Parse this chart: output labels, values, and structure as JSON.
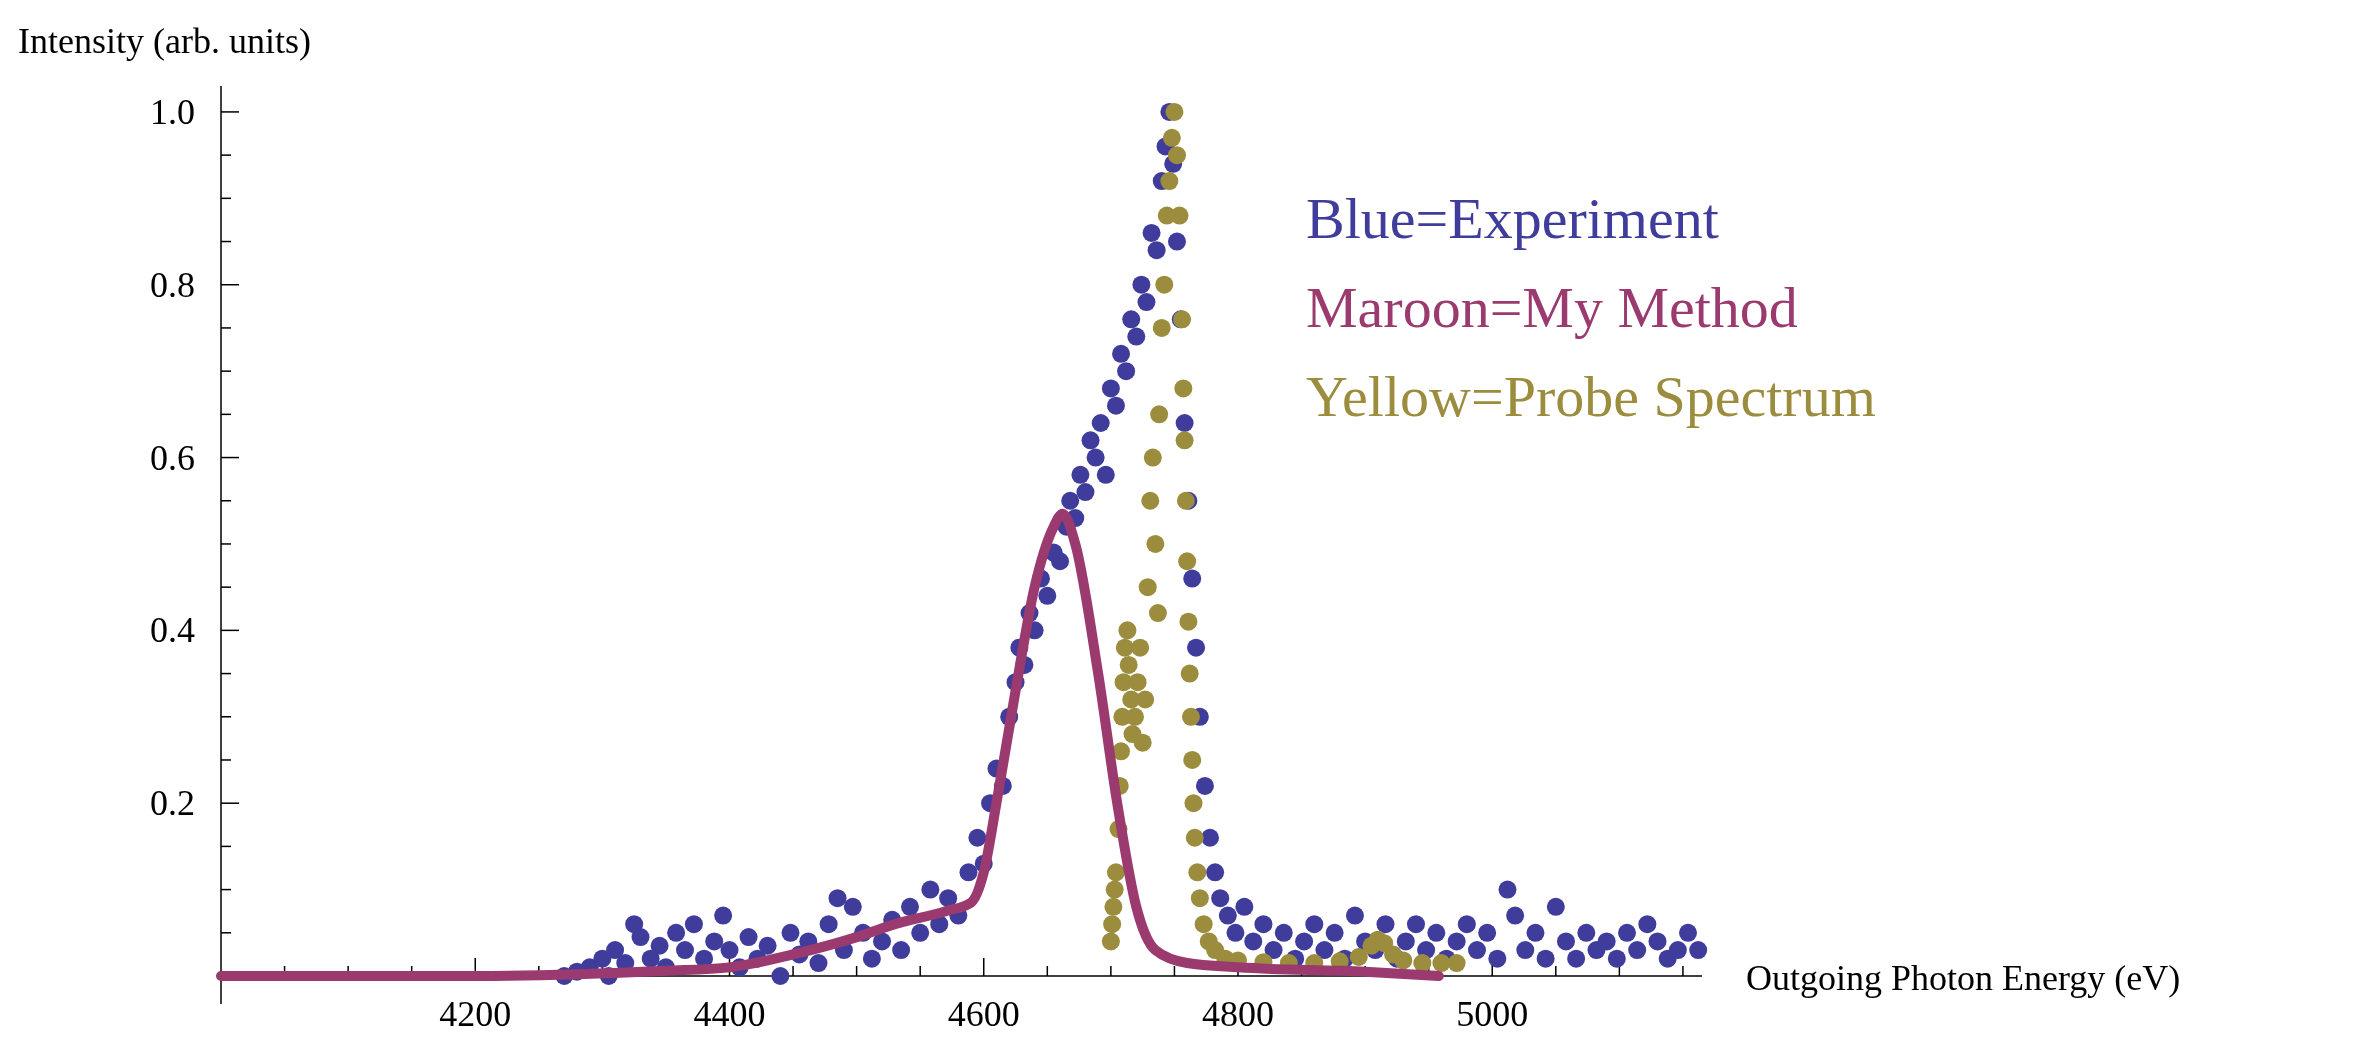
{
  "chart_data": {
    "type": "scatter",
    "xlabel": "Outgoing Photon Energy (eV)",
    "ylabel": "Intensity (arb. units)",
    "xlim": [
      4000,
      5165
    ],
    "ylim": [
      0,
      1.03
    ],
    "xticks": [
      {
        "value": 4050,
        "label": null
      },
      {
        "value": 4100,
        "label": null
      },
      {
        "value": 4150,
        "label": null
      },
      4200,
      {
        "value": 4250,
        "label": null
      },
      {
        "value": 4300,
        "label": null
      },
      {
        "value": 4350,
        "label": null
      },
      4400,
      {
        "value": 4450,
        "label": null
      },
      {
        "value": 4500,
        "label": null
      },
      {
        "value": 4550,
        "label": null
      },
      4600,
      {
        "value": 4650,
        "label": null
      },
      {
        "value": 4700,
        "label": null
      },
      {
        "value": 4750,
        "label": null
      },
      4800,
      {
        "value": 4850,
        "label": null
      },
      {
        "value": 4900,
        "label": null
      },
      {
        "value": 4950,
        "label": null
      },
      5000,
      {
        "value": 5050,
        "label": null
      },
      {
        "value": 5100,
        "label": null
      },
      {
        "value": 5150,
        "label": null
      }
    ],
    "yticks": [
      {
        "value": 0.05,
        "label": null
      },
      {
        "value": 0.1,
        "label": null
      },
      {
        "value": 0.15,
        "label": null
      },
      0.2,
      {
        "value": 0.25,
        "label": null
      },
      {
        "value": 0.3,
        "label": null
      },
      {
        "value": 0.35,
        "label": null
      },
      0.4,
      {
        "value": 0.45,
        "label": null
      },
      {
        "value": 0.5,
        "label": null
      },
      {
        "value": 0.55,
        "label": null
      },
      0.6,
      {
        "value": 0.65,
        "label": null
      },
      {
        "value": 0.7,
        "label": null
      },
      {
        "value": 0.75,
        "label": null
      },
      0.8,
      {
        "value": 0.85,
        "label": null
      },
      {
        "value": 0.9,
        "label": null
      },
      {
        "value": 0.95,
        "label": null
      },
      {
        "value": 1,
        "label": "1.0"
      }
    ],
    "marker": "circle",
    "legend": "top right",
    "grid": false,
    "series": [
      {
        "name": "Blue=Experiment",
        "color": "#3f3c9c",
        "x": [
          4270,
          4280,
          4290,
          4300,
          4305,
          4310,
          4318,
          4325,
          4330,
          4338,
          4345,
          4350,
          4358,
          4365,
          4372,
          4380,
          4388,
          4395,
          4400,
          4408,
          4415,
          4422,
          4430,
          4440,
          4448,
          4455,
          4462,
          4470,
          4478,
          4485,
          4490,
          4497,
          4505,
          4512,
          4520,
          4528,
          4535,
          4542,
          4550,
          4558,
          4565,
          4572,
          4580,
          4588,
          4595,
          4600,
          4605,
          4610,
          4615,
          4620,
          4625,
          4628,
          4632,
          4636,
          4640,
          4645,
          4650,
          4655,
          4660,
          4665,
          4668,
          4672,
          4676,
          4680,
          4684,
          4688,
          4692,
          4696,
          4700,
          4704,
          4708,
          4712,
          4716,
          4720,
          4724,
          4728,
          4732,
          4736,
          4740,
          4743,
          4746,
          4749,
          4752,
          4755,
          4758,
          4761,
          4764,
          4767,
          4770,
          4774,
          4778,
          4782,
          4786,
          4792,
          4798,
          4805,
          4812,
          4820,
          4828,
          4836,
          4845,
          4852,
          4860,
          4868,
          4876,
          4884,
          4892,
          4900,
          4908,
          4916,
          4925,
          4932,
          4940,
          4948,
          4956,
          4964,
          4972,
          4980,
          4988,
          4996,
          5004,
          5012,
          5018,
          5026,
          5034,
          5042,
          5050,
          5058,
          5066,
          5074,
          5082,
          5090,
          5098,
          5106,
          5114,
          5122,
          5130,
          5138,
          5146,
          5154,
          5162
        ],
        "values": [
          0,
          0.005,
          0.01,
          0.02,
          0,
          0.03,
          0.015,
          0.06,
          0.045,
          0.02,
          0.035,
          0.01,
          0.05,
          0.03,
          0.06,
          0.02,
          0.04,
          0.07,
          0.03,
          0.01,
          0.045,
          0.02,
          0.035,
          0,
          0.05,
          0.025,
          0.04,
          0.015,
          0.06,
          0.09,
          0.03,
          0.08,
          0.05,
          0.02,
          0.04,
          0.065,
          0.03,
          0.08,
          0.05,
          0.1,
          0.06,
          0.09,
          0.07,
          0.12,
          0.16,
          0.13,
          0.2,
          0.24,
          0.22,
          0.3,
          0.34,
          0.38,
          0.36,
          0.42,
          0.4,
          0.46,
          0.44,
          0.49,
          0.48,
          0.52,
          0.55,
          0.53,
          0.58,
          0.56,
          0.62,
          0.6,
          0.64,
          0.58,
          0.68,
          0.66,
          0.72,
          0.7,
          0.76,
          0.74,
          0.8,
          0.78,
          0.86,
          0.84,
          0.92,
          0.96,
          1,
          0.94,
          0.85,
          0.76,
          0.64,
          0.55,
          0.46,
          0.38,
          0.3,
          0.22,
          0.16,
          0.12,
          0.09,
          0.07,
          0.05,
          0.08,
          0.04,
          0.06,
          0.03,
          0.05,
          0.02,
          0.04,
          0.06,
          0.03,
          0.05,
          0.02,
          0.07,
          0.04,
          0.03,
          0.06,
          0.02,
          0.04,
          0.06,
          0.03,
          0.05,
          0.02,
          0.04,
          0.06,
          0.03,
          0.05,
          0.02,
          0.1,
          0.07,
          0.03,
          0.05,
          0.02,
          0.08,
          0.04,
          0.02,
          0.05,
          0.03,
          0.04,
          0.02,
          0.05,
          0.03,
          0.06,
          0.04,
          0.02,
          0.03,
          0.05,
          0.03
        ]
      },
      {
        "name": "Maroon=My Method",
        "type": "line",
        "marker": "none",
        "color": "#9b3a6e",
        "x": [
          4000,
          4100,
          4200,
          4280,
          4350,
          4400,
          4450,
          4500,
          4530,
          4570,
          4590,
          4600,
          4610,
          4625,
          4640,
          4655,
          4662,
          4672,
          4690,
          4705,
          4720,
          4735,
          4760,
          4800,
          4900,
          4958
        ],
        "values": [
          0,
          0,
          0,
          0.002,
          0.006,
          0.01,
          0.025,
          0.045,
          0.06,
          0.075,
          0.085,
          0.12,
          0.2,
          0.33,
          0.45,
          0.52,
          0.535,
          0.5,
          0.35,
          0.2,
          0.08,
          0.03,
          0.015,
          0.01,
          0.005,
          0
        ]
      },
      {
        "name": "Yellow=Probe Spectrum",
        "color": "#9c8d3e",
        "x": [
          4700,
          4701,
          4702,
          4703,
          4704,
          4706,
          4707,
          4708,
          4709,
          4710,
          4711,
          4713,
          4714,
          4716,
          4717,
          4719,
          4721,
          4723,
          4725,
          4727,
          4729,
          4731,
          4733,
          4735,
          4737,
          4738,
          4740,
          4742,
          4744,
          4746,
          4748,
          4750,
          4752,
          4754,
          4756,
          4757,
          4758,
          4759,
          4760,
          4761,
          4762,
          4763,
          4764,
          4765,
          4766,
          4768,
          4770,
          4773,
          4777,
          4782,
          4790,
          4800,
          4820,
          4840,
          4860,
          4880,
          4895,
          4905,
          4910,
          4915,
          4922,
          4930,
          4945,
          4960,
          4972
        ],
        "values": [
          0.04,
          0.06,
          0.08,
          0.1,
          0.12,
          0.17,
          0.22,
          0.26,
          0.3,
          0.34,
          0.38,
          0.4,
          0.36,
          0.32,
          0.28,
          0.3,
          0.34,
          0.38,
          0.27,
          0.32,
          0.45,
          0.55,
          0.6,
          0.5,
          0.42,
          0.65,
          0.75,
          0.8,
          0.88,
          0.92,
          0.97,
          1,
          0.95,
          0.88,
          0.76,
          0.68,
          0.62,
          0.55,
          0.48,
          0.41,
          0.35,
          0.3,
          0.25,
          0.2,
          0.16,
          0.12,
          0.09,
          0.06,
          0.04,
          0.03,
          0.02,
          0.018,
          0.016,
          0.015,
          0.015,
          0.017,
          0.022,
          0.035,
          0.042,
          0.038,
          0.025,
          0.018,
          0.015,
          0.015,
          0.015
        ]
      }
    ]
  }
}
